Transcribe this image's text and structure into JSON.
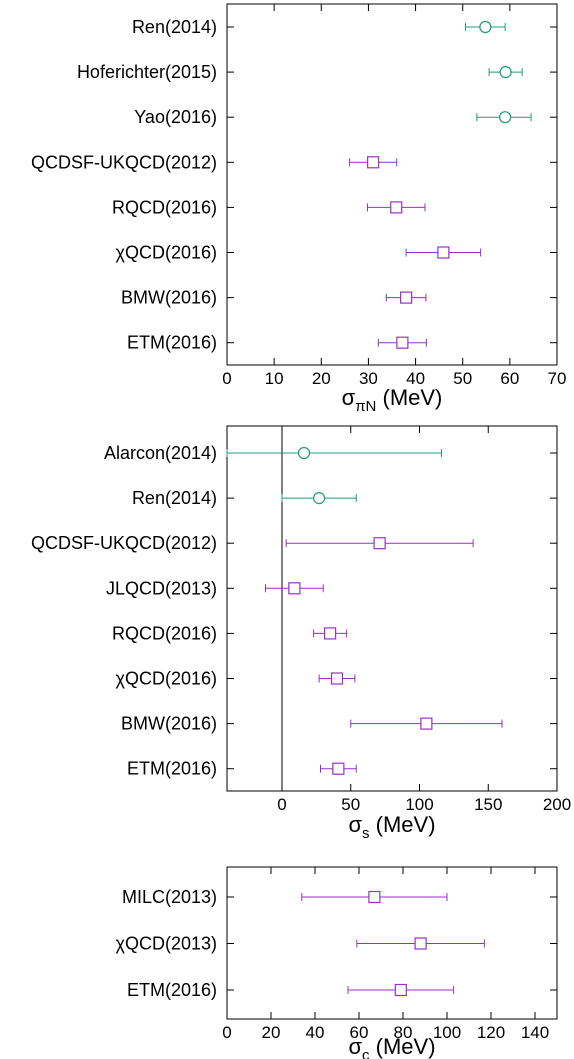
{
  "colors": {
    "green": "#1a9f79",
    "purple": "#9a2fc7",
    "axis": "#000000"
  },
  "chart_data": [
    {
      "type": "scatter",
      "xlabel_main": "σ",
      "xlabel_sub": "πN",
      "xlabel_unit": " (MeV)",
      "xlim": [
        0,
        70
      ],
      "xticks": [
        0,
        10,
        20,
        30,
        40,
        50,
        60,
        70
      ],
      "zero_line": false,
      "points": [
        {
          "label": "Ren(2014)",
          "value": 54.8,
          "err_low": 4.2,
          "err_high": 4.2,
          "marker": "circle",
          "color": "green"
        },
        {
          "label": "Hoferichter(2015)",
          "value": 59.1,
          "err_low": 3.5,
          "err_high": 3.5,
          "marker": "circle",
          "color": "green"
        },
        {
          "label": "Yao(2016)",
          "value": 59.0,
          "err_low": 6.0,
          "err_high": 5.5,
          "marker": "circle",
          "color": "green"
        },
        {
          "label": "QCDSF-UKQCD(2012)",
          "value": 31.0,
          "err_low": 5.0,
          "err_high": 5.0,
          "marker": "square",
          "color": "purple"
        },
        {
          "label": "RQCD(2016)",
          "value": 35.9,
          "err_low": 6.1,
          "err_high": 6.1,
          "marker": "square",
          "color": "purple"
        },
        {
          "label": "χQCD(2016)",
          "value": 45.9,
          "err_low": 7.9,
          "err_high": 7.9,
          "marker": "square",
          "color": "purple"
        },
        {
          "label": "BMW(2016)",
          "value": 38.0,
          "err_low": 4.2,
          "err_high": 4.2,
          "marker": "square",
          "color": "purple"
        },
        {
          "label": "ETM(2016)",
          "value": 37.2,
          "err_low": 5.1,
          "err_high": 5.1,
          "marker": "square",
          "color": "purple"
        }
      ]
    },
    {
      "type": "scatter",
      "xlabel_main": "σ",
      "xlabel_sub": "s",
      "xlabel_unit": " (MeV)",
      "xlim": [
        -40,
        200
      ],
      "xticks": [
        0,
        50,
        100,
        150,
        200
      ],
      "zero_line": true,
      "points": [
        {
          "label": "Alarcon(2014)",
          "value": 16,
          "err_low": 56,
          "err_high": 100,
          "marker": "circle",
          "color": "green"
        },
        {
          "label": "Ren(2014)",
          "value": 27,
          "err_low": 27,
          "err_high": 27,
          "marker": "circle",
          "color": "green"
        },
        {
          "label": "QCDSF-UKQCD(2012)",
          "value": 71,
          "err_low": 68,
          "err_high": 68,
          "marker": "square",
          "color": "purple"
        },
        {
          "label": "JLQCD(2013)",
          "value": 9,
          "err_low": 21,
          "err_high": 21,
          "marker": "square",
          "color": "purple"
        },
        {
          "label": "RQCD(2016)",
          "value": 35,
          "err_low": 12,
          "err_high": 12,
          "marker": "square",
          "color": "purple"
        },
        {
          "label": "χQCD(2016)",
          "value": 40,
          "err_low": 13,
          "err_high": 13,
          "marker": "square",
          "color": "purple"
        },
        {
          "label": "BMW(2016)",
          "value": 105,
          "err_low": 55,
          "err_high": 55,
          "marker": "square",
          "color": "purple"
        },
        {
          "label": "ETM(2016)",
          "value": 41,
          "err_low": 13,
          "err_high": 13,
          "marker": "square",
          "color": "purple"
        }
      ]
    },
    {
      "type": "scatter",
      "xlabel_main": "σ",
      "xlabel_sub": "c",
      "xlabel_unit": " (MeV)",
      "xlim": [
        0,
        150
      ],
      "xticks": [
        0,
        20,
        40,
        60,
        80,
        100,
        120,
        140
      ],
      "zero_line": false,
      "points": [
        {
          "label": "MILC(2013)",
          "value": 67,
          "err_low": 33,
          "err_high": 33,
          "marker": "square",
          "color": "purple"
        },
        {
          "label": "χQCD(2013)",
          "value": 88,
          "err_low": 29,
          "err_high": 29,
          "marker": "square",
          "color": "purple"
        },
        {
          "label": "ETM(2016)",
          "value": 79,
          "err_low": 24,
          "err_high": 24,
          "marker": "square",
          "color": "purple"
        }
      ]
    }
  ]
}
